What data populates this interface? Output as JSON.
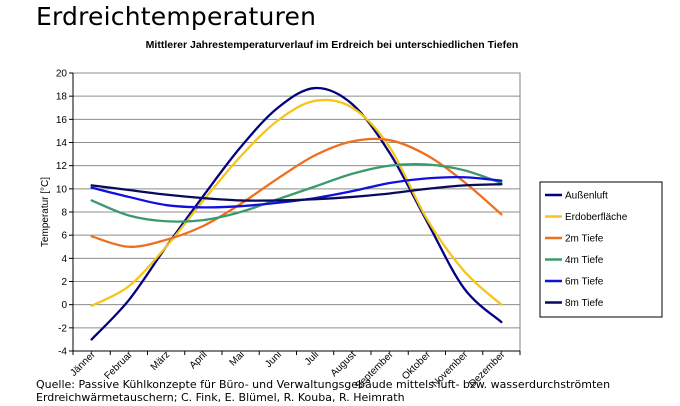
{
  "page": {
    "main_title": "Erdreichtemperaturen",
    "source_line1": "Quelle: Passive Kühlkonzepte für Büro- und Verwaltungsgebäude mittels luft- bzw. wasserdurchströmten",
    "source_line2": "Erdreichwärmetauschern; C. Fink, E. Blümel, R. Kouba, R. Heimrath"
  },
  "chart_data": {
    "type": "line",
    "title": "Mittlerer Jahrestemperaturverlauf im Erdreich bei unterschiedlichen Tiefen",
    "xlabel": "",
    "ylabel": "Temperatur [°C]",
    "ylim": [
      -4,
      20
    ],
    "yticks": [
      -4,
      -2,
      0,
      2,
      4,
      6,
      8,
      10,
      12,
      14,
      16,
      18,
      20
    ],
    "grid": true,
    "legend_position": "right",
    "categories": [
      "Jänner",
      "Februar",
      "März",
      "April",
      "Mai",
      "Juni",
      "Juli",
      "August",
      "September",
      "Oktober",
      "November",
      "Dezember"
    ],
    "series": [
      {
        "name": "Außenluft",
        "color": "#000080",
        "values": [
          -3.0,
          0.4,
          5.0,
          9.4,
          13.6,
          17.0,
          18.7,
          17.3,
          13.1,
          7.2,
          1.4,
          -1.5
        ]
      },
      {
        "name": "Erdoberfläche",
        "color": "#f5c518",
        "values": [
          -0.1,
          1.6,
          5.0,
          9.0,
          12.8,
          15.9,
          17.6,
          17.0,
          13.6,
          7.4,
          2.9,
          0.0
        ]
      },
      {
        "name": "2m Tiefe",
        "color": "#ee6f1e",
        "values": [
          5.9,
          5.0,
          5.6,
          6.8,
          8.7,
          10.9,
          12.9,
          14.1,
          14.2,
          12.9,
          10.6,
          7.8
        ]
      },
      {
        "name": "4m Tiefe",
        "color": "#3a9a6e",
        "values": [
          9.0,
          7.7,
          7.2,
          7.3,
          8.0,
          9.1,
          10.2,
          11.3,
          12.0,
          12.1,
          11.6,
          10.5
        ]
      },
      {
        "name": "6m Tiefe",
        "color": "#1010e0",
        "values": [
          10.1,
          9.3,
          8.6,
          8.4,
          8.5,
          8.8,
          9.2,
          9.8,
          10.5,
          10.9,
          11.0,
          10.7
        ]
      },
      {
        "name": "8m Tiefe",
        "color": "#0a0a5c",
        "values": [
          10.3,
          9.9,
          9.5,
          9.2,
          9.0,
          9.0,
          9.1,
          9.3,
          9.6,
          10.0,
          10.3,
          10.4
        ]
      }
    ]
  }
}
